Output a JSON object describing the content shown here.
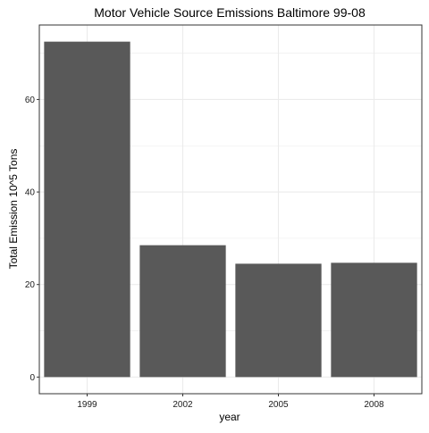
{
  "chart_data": {
    "type": "bar",
    "title": "Motor Vehicle Source Emissions Baltimore 99-08",
    "xlabel": "year",
    "ylabel": "Total Emission 10^5 Tons",
    "categories": [
      "1999",
      "2002",
      "2005",
      "2008"
    ],
    "values": [
      72.5,
      28.5,
      24.5,
      24.7
    ],
    "ylim": [
      -3.6,
      76.1
    ],
    "yticks": [
      0,
      20,
      40,
      60
    ],
    "grid": true,
    "bar_color": "#595959",
    "grid_color": "#ebebeb",
    "panel_border_color": "#333333"
  }
}
